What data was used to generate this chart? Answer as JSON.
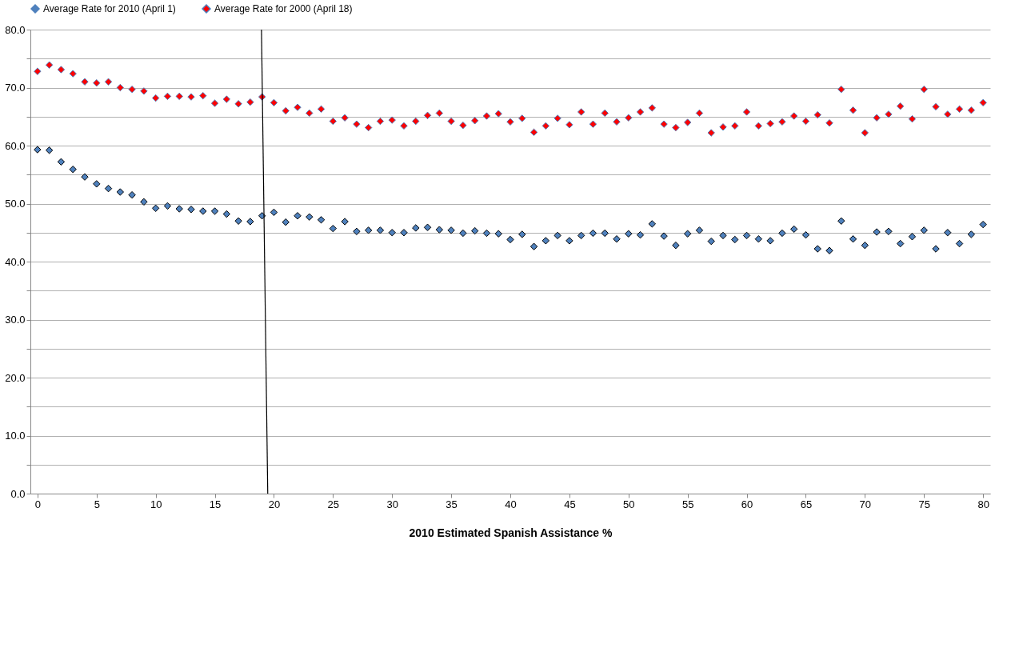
{
  "chart_data": {
    "type": "scatter",
    "xlabel": "2010 Estimated Spanish Assistance %",
    "legend": "top",
    "marker": "diamond",
    "grid": "y",
    "x": [
      0,
      1,
      2,
      3,
      4,
      5,
      6,
      7,
      8,
      9,
      10,
      11,
      12,
      13,
      14,
      15,
      16,
      17,
      18,
      19,
      20,
      21,
      22,
      23,
      24,
      25,
      26,
      27,
      28,
      29,
      30,
      31,
      32,
      33,
      34,
      35,
      36,
      37,
      38,
      39,
      40,
      41,
      42,
      43,
      44,
      45,
      46,
      47,
      48,
      49,
      50,
      51,
      52,
      53,
      54,
      55,
      56,
      57,
      58,
      59,
      60,
      61,
      62,
      63,
      64,
      65,
      66,
      67,
      68,
      69,
      70,
      71,
      72,
      73,
      74,
      75,
      76,
      77,
      78,
      79,
      80
    ],
    "xlim": [
      -0.6,
      80.6
    ],
    "xticks": [
      0,
      5,
      10,
      15,
      20,
      25,
      30,
      35,
      40,
      45,
      50,
      55,
      60,
      65,
      70,
      75,
      80
    ],
    "ylim": [
      0,
      80
    ],
    "yticks": [
      {
        "value": 0,
        "label": "0.0"
      },
      {
        "value": 5,
        "label": null
      },
      {
        "value": 10,
        "label": "10.0"
      },
      {
        "value": 15,
        "label": null
      },
      {
        "value": 20,
        "label": "20.0"
      },
      {
        "value": 25,
        "label": null
      },
      {
        "value": 30,
        "label": "30.0"
      },
      {
        "value": 35,
        "label": null
      },
      {
        "value": 40,
        "label": "40.0"
      },
      {
        "value": 45,
        "label": null
      },
      {
        "value": 50,
        "label": "50.0"
      },
      {
        "value": 55,
        "label": null
      },
      {
        "value": 60,
        "label": "60.0"
      },
      {
        "value": 65,
        "label": null
      },
      {
        "value": 70,
        "label": "70.0"
      },
      {
        "value": 75,
        "label": null
      },
      {
        "value": 80,
        "label": "80.0"
      }
    ],
    "series": [
      {
        "name": "Average Rate for 2010 (April 1)",
        "color": "#4f81bd",
        "values": [
          59.3,
          59.2,
          57.2,
          55.9,
          54.6,
          53.4,
          52.6,
          52.0,
          51.5,
          50.3,
          49.2,
          49.6,
          49.1,
          49.0,
          48.7,
          48.7,
          48.2,
          47.0,
          46.9,
          47.9,
          48.5,
          46.8,
          47.9,
          47.7,
          47.2,
          45.7,
          46.9,
          45.2,
          45.4,
          45.4,
          45.0,
          45.0,
          45.8,
          45.9,
          45.5,
          45.4,
          44.9,
          45.3,
          44.9,
          44.8,
          43.8,
          44.7,
          42.6,
          43.6,
          44.5,
          43.6,
          44.5,
          44.9,
          44.9,
          43.9,
          44.8,
          44.6,
          46.5,
          44.4,
          42.8,
          44.8,
          45.4,
          43.5,
          44.5,
          43.8,
          44.5,
          43.9,
          43.6,
          44.9,
          45.6,
          44.6,
          42.2,
          41.9,
          47.0,
          43.9,
          42.8,
          45.1,
          45.2,
          43.1,
          44.3,
          45.4,
          42.2,
          45.0,
          43.1,
          44.7,
          46.4
        ]
      },
      {
        "name": "Average Rate for 2000 (April 18)",
        "color": "#ff0000",
        "values": [
          72.8,
          73.9,
          73.1,
          72.4,
          71.0,
          70.8,
          71.0,
          70.0,
          69.7,
          69.4,
          68.2,
          68.5,
          68.5,
          68.4,
          68.6,
          67.3,
          68.0,
          67.2,
          67.5,
          68.4,
          67.4,
          66.0,
          66.6,
          65.6,
          66.3,
          64.2,
          64.8,
          63.7,
          63.1,
          64.2,
          64.4,
          63.4,
          64.2,
          65.2,
          65.6,
          64.2,
          63.5,
          64.3,
          65.1,
          65.5,
          64.1,
          64.7,
          62.3,
          63.4,
          64.7,
          63.6,
          65.8,
          63.7,
          65.6,
          64.1,
          64.8,
          65.8,
          66.5,
          63.7,
          63.1,
          64.0,
          65.6,
          62.2,
          63.2,
          63.4,
          65.8,
          63.4,
          63.8,
          64.1,
          65.1,
          64.2,
          65.3,
          63.9,
          69.7,
          66.1,
          62.2,
          64.8,
          65.4,
          66.8,
          64.6,
          69.7,
          66.7,
          65.4,
          66.3,
          66.1,
          67.4
        ]
      },
      {
        "type": "line",
        "marker": "none",
        "line_style": "solid",
        "color": "#000000",
        "x": [
          18.95,
          19.48
        ],
        "values": [
          80,
          0
        ]
      }
    ]
  }
}
